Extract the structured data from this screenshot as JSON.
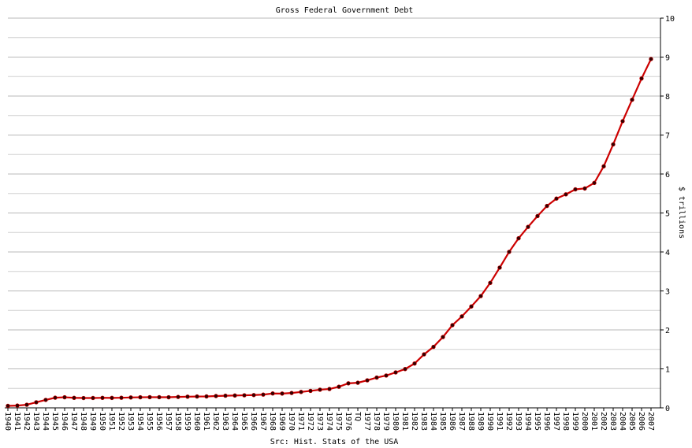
{
  "chart_data": {
    "type": "line",
    "title": "Gross Federal Government Debt",
    "x_label": "Src: Hist. Stats of the USA",
    "y_label": "$ trillions",
    "categories": [
      "1940",
      "1941",
      "1942",
      "1943",
      "1944",
      "1945",
      "1946",
      "1947",
      "1948",
      "1949",
      "1950",
      "1951",
      "1952",
      "1953",
      "1954",
      "1955",
      "1956",
      "1957",
      "1958",
      "1959",
      "1960",
      "1961",
      "1962",
      "1963",
      "1964",
      "1965",
      "1966",
      "1967",
      "1968",
      "1969",
      "1970",
      "1971",
      "1972",
      "1973",
      "1974",
      "1975",
      "1976",
      "TQ",
      "1977",
      "1978",
      "1979",
      "1980",
      "1981",
      "1982",
      "1983",
      "1984",
      "1985",
      "1986",
      "1987",
      "1988",
      "1989",
      "1990",
      "1991",
      "1992",
      "1993",
      "1994",
      "1995",
      "1996",
      "1997",
      "1998",
      "1999",
      "2000",
      "2001",
      "2002",
      "2003",
      "2004",
      "2005",
      "2006",
      "2007"
    ],
    "values": [
      0.051,
      0.058,
      0.079,
      0.143,
      0.204,
      0.26,
      0.271,
      0.257,
      0.252,
      0.253,
      0.257,
      0.255,
      0.259,
      0.266,
      0.271,
      0.274,
      0.273,
      0.272,
      0.28,
      0.287,
      0.291,
      0.293,
      0.303,
      0.311,
      0.317,
      0.322,
      0.328,
      0.34,
      0.369,
      0.366,
      0.381,
      0.408,
      0.436,
      0.466,
      0.484,
      0.542,
      0.629,
      0.644,
      0.706,
      0.777,
      0.829,
      0.909,
      0.995,
      1.137,
      1.372,
      1.565,
      1.817,
      2.121,
      2.346,
      2.601,
      2.868,
      3.206,
      3.598,
      4.002,
      4.351,
      4.643,
      4.921,
      5.181,
      5.369,
      5.478,
      5.606,
      5.629,
      5.77,
      6.198,
      6.76,
      7.355,
      7.905,
      8.451,
      8.95
    ],
    "color": "#cc0000",
    "marker_color": "#330000",
    "ylim": [
      0,
      10
    ],
    "yticks": [
      0,
      1,
      2,
      3,
      4,
      5,
      6,
      7,
      8,
      9,
      10
    ],
    "minor_yticks": [
      0.5,
      1.5,
      2.5,
      3.5,
      4.5,
      5.5,
      6.5,
      7.5,
      8.5,
      9.5
    ],
    "grid": true,
    "y_axis_side": "right"
  }
}
